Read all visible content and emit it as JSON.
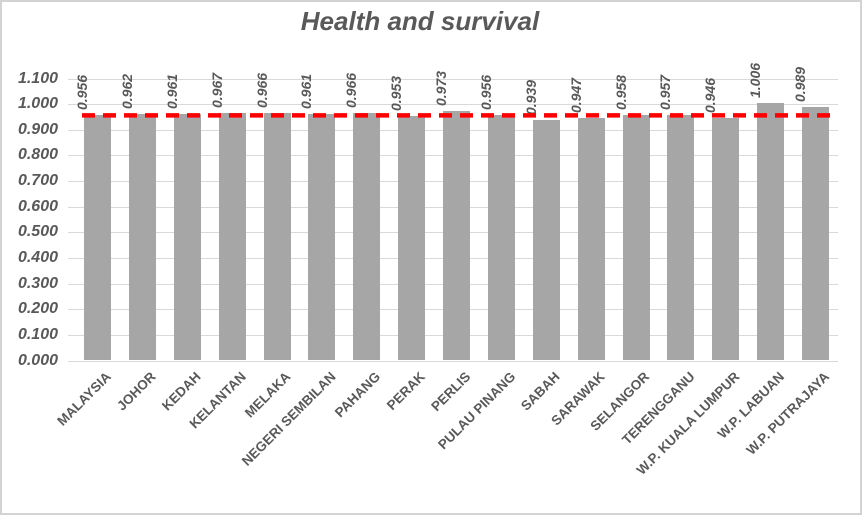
{
  "chart_data": {
    "type": "bar",
    "title": "Health and survival",
    "categories": [
      "MALAYSIA",
      "JOHOR",
      "KEDAH",
      "KELANTAN",
      "MELAKA",
      "NEGERI SEMBILAN",
      "PAHANG",
      "PERAK",
      "PERLIS",
      "PULAU PINANG",
      "SABAH",
      "SARAWAK",
      "SELANGOR",
      "TERENGGANU",
      "W.P. KUALA LUMPUR",
      "W.P. LABUAN",
      "W.P. PUTRAJAYA"
    ],
    "values": [
      0.956,
      0.962,
      0.961,
      0.967,
      0.966,
      0.961,
      0.966,
      0.953,
      0.973,
      0.956,
      0.939,
      0.947,
      0.958,
      0.957,
      0.946,
      1.006,
      0.989
    ],
    "value_labels": [
      "0.956",
      "0.962",
      "0.961",
      "0.967",
      "0.966",
      "0.961",
      "0.966",
      "0.953",
      "0.973",
      "0.956",
      "0.939",
      "0.947",
      "0.958",
      "0.957",
      "0.946",
      "1.006",
      "0.989"
    ],
    "xlabel": "",
    "ylabel": "",
    "ylim": [
      0,
      1.1
    ],
    "ytick_labels": [
      "0.000",
      "0.100",
      "0.200",
      "0.300",
      "0.400",
      "0.500",
      "0.600",
      "0.700",
      "0.800",
      "0.900",
      "1.000",
      "1.100"
    ],
    "grid": true,
    "legend": null,
    "value_labels_rotation_deg": 90,
    "category_labels_rotation_deg": 45,
    "reference_line": {
      "value": 0.956,
      "color": "#ff0000",
      "style": "dashed"
    },
    "colors": {
      "bar": "#a6a6a6",
      "text": "#595959",
      "gridline": "#d9d9d9",
      "background": "#ffffff",
      "frame_border": "#d3d3d3"
    }
  }
}
